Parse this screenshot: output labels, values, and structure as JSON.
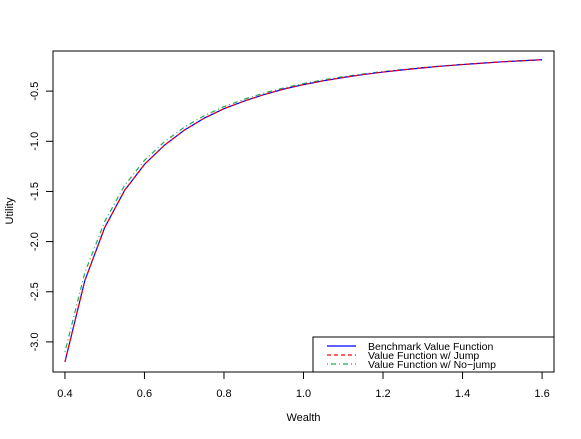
{
  "chart_data": {
    "type": "line",
    "title": "",
    "xlabel": "Wealth",
    "ylabel": "Utility",
    "xlim": [
      0.37,
      1.63
    ],
    "ylim": [
      -3.3,
      -0.1
    ],
    "x_ticks": [
      0.4,
      0.6,
      0.8,
      1.0,
      1.2,
      1.4,
      1.6
    ],
    "x_tick_labels": [
      "0.4",
      "0.6",
      "0.8",
      "1.0",
      "1.2",
      "1.4",
      "1.6"
    ],
    "y_ticks": [
      -3.0,
      -2.5,
      -2.0,
      -1.5,
      -1.0,
      -0.5
    ],
    "y_tick_labels": [
      "-3.0",
      "-2.5",
      "-2.0",
      "-1.5",
      "-1.0",
      "-0.5"
    ],
    "grid": false,
    "legend_position": "bottom-right",
    "x": [
      0.4,
      0.45,
      0.5,
      0.55,
      0.6,
      0.65,
      0.7,
      0.75,
      0.8,
      0.85,
      0.9,
      0.95,
      1.0,
      1.05,
      1.1,
      1.15,
      1.2,
      1.25,
      1.3,
      1.35,
      1.4,
      1.45,
      1.5,
      1.55,
      1.6
    ],
    "series": [
      {
        "name": "Benchmark Value Function",
        "color": "#0000ff",
        "style": "solid",
        "values": [
          -3.2,
          -2.39,
          -1.86,
          -1.49,
          -1.23,
          -1.04,
          -0.89,
          -0.77,
          -0.675,
          -0.6,
          -0.535,
          -0.48,
          -0.435,
          -0.397,
          -0.364,
          -0.335,
          -0.31,
          -0.288,
          -0.268,
          -0.25,
          -0.235,
          -0.221,
          -0.208,
          -0.197,
          -0.187
        ]
      },
      {
        "name": "Value Function w/ Jump",
        "color": "#ff0000",
        "style": "dashed",
        "values": [
          -3.2,
          -2.39,
          -1.86,
          -1.49,
          -1.23,
          -1.04,
          -0.89,
          -0.77,
          -0.675,
          -0.6,
          -0.535,
          -0.48,
          -0.435,
          -0.397,
          -0.364,
          -0.335,
          -0.31,
          -0.288,
          -0.268,
          -0.25,
          -0.235,
          -0.221,
          -0.208,
          -0.197,
          -0.187
        ]
      },
      {
        "name": "Value Function w/ No−jump",
        "color": "#22aa55",
        "style": "dotdash",
        "values": [
          -3.1,
          -2.31,
          -1.8,
          -1.44,
          -1.19,
          -1.005,
          -0.86,
          -0.745,
          -0.655,
          -0.582,
          -0.52,
          -0.468,
          -0.425,
          -0.388,
          -0.356,
          -0.329,
          -0.305,
          -0.284,
          -0.265,
          -0.248,
          -0.233,
          -0.22,
          -0.208,
          -0.197,
          -0.187
        ]
      }
    ]
  }
}
